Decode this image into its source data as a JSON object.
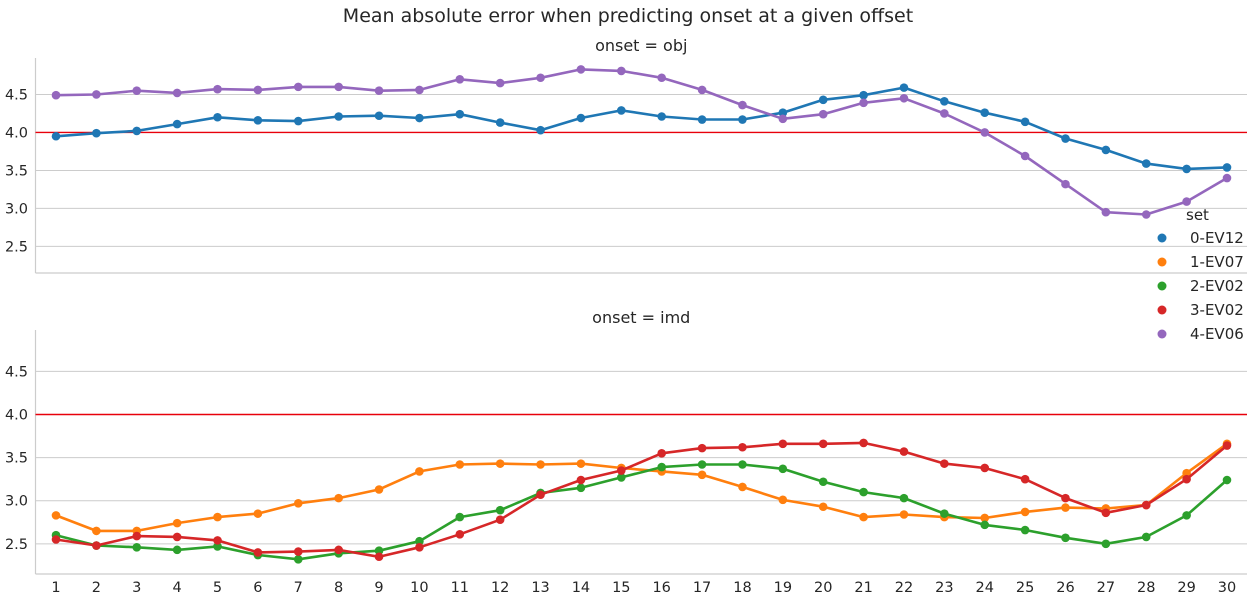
{
  "chart_data": {
    "type": "line",
    "title": "Mean absolute error when predicting onset at a given offset",
    "x": [
      1,
      2,
      3,
      4,
      5,
      6,
      7,
      8,
      9,
      10,
      11,
      12,
      13,
      14,
      15,
      16,
      17,
      18,
      19,
      20,
      21,
      22,
      23,
      24,
      25,
      26,
      27,
      28,
      29,
      30
    ],
    "ylim": [
      2.15,
      4.98
    ],
    "yticks": [
      2.5,
      3.0,
      3.5,
      4.0,
      4.5
    ],
    "ytick_labels": [
      "2.5",
      "3.0",
      "3.5",
      "4.0",
      "4.5"
    ],
    "reference_line": {
      "y": 4.0,
      "color": "#e8000b"
    },
    "grid": "horizontal",
    "legend": {
      "title": "set",
      "placement": "right",
      "entries": [
        {
          "label": "0-EV12",
          "color": "#1f77b4"
        },
        {
          "label": "1-EV07",
          "color": "#ff7f0e"
        },
        {
          "label": "2-EV02",
          "color": "#2ca02c"
        },
        {
          "label": "3-EV02",
          "color": "#d62728"
        },
        {
          "label": "4-EV06",
          "color": "#9467bd"
        }
      ]
    },
    "panels": [
      {
        "title": "onset = obj",
        "series": [
          {
            "name": "0-EV12",
            "color": "#1f77b4",
            "values": [
              3.95,
              3.99,
              4.02,
              4.11,
              4.2,
              4.16,
              4.15,
              4.21,
              4.22,
              4.19,
              4.24,
              4.13,
              4.03,
              4.19,
              4.29,
              4.21,
              4.17,
              4.17,
              4.26,
              4.43,
              4.49,
              4.59,
              4.41,
              4.26,
              4.14,
              3.92,
              3.77,
              3.59,
              3.52,
              3.54
            ]
          },
          {
            "name": "4-EV06",
            "color": "#9467bd",
            "values": [
              4.49,
              4.5,
              4.55,
              4.52,
              4.57,
              4.56,
              4.6,
              4.6,
              4.55,
              4.56,
              4.7,
              4.65,
              4.72,
              4.83,
              4.81,
              4.72,
              4.56,
              4.36,
              4.18,
              4.24,
              4.39,
              4.45,
              4.25,
              4.0,
              3.69,
              3.32,
              2.95,
              2.92,
              3.09,
              3.4
            ]
          }
        ]
      },
      {
        "title": "onset = imd",
        "series": [
          {
            "name": "1-EV07",
            "color": "#ff7f0e",
            "values": [
              2.83,
              2.65,
              2.65,
              2.74,
              2.81,
              2.85,
              2.97,
              3.03,
              3.13,
              3.34,
              3.42,
              3.43,
              3.42,
              3.43,
              3.38,
              3.34,
              3.3,
              3.16,
              3.01,
              2.93,
              2.81,
              2.84,
              2.81,
              2.8,
              2.87,
              2.92,
              2.91,
              2.95,
              3.32,
              3.66
            ]
          },
          {
            "name": "2-EV02",
            "color": "#2ca02c",
            "values": [
              2.6,
              2.48,
              2.46,
              2.43,
              2.47,
              2.37,
              2.32,
              2.39,
              2.42,
              2.53,
              2.81,
              2.89,
              3.09,
              3.15,
              3.27,
              3.39,
              3.42,
              3.42,
              3.37,
              3.22,
              3.1,
              3.03,
              2.85,
              2.72,
              2.66,
              2.57,
              2.5,
              2.58,
              2.83,
              3.24
            ]
          },
          {
            "name": "3-EV02",
            "color": "#d62728",
            "values": [
              2.55,
              2.48,
              2.59,
              2.58,
              2.54,
              2.4,
              2.41,
              2.43,
              2.35,
              2.46,
              2.61,
              2.78,
              3.07,
              3.24,
              3.35,
              3.55,
              3.61,
              3.62,
              3.66,
              3.66,
              3.67,
              3.57,
              3.43,
              3.38,
              3.25,
              3.03,
              2.86,
              2.95,
              3.25,
              3.64
            ]
          }
        ]
      }
    ]
  }
}
